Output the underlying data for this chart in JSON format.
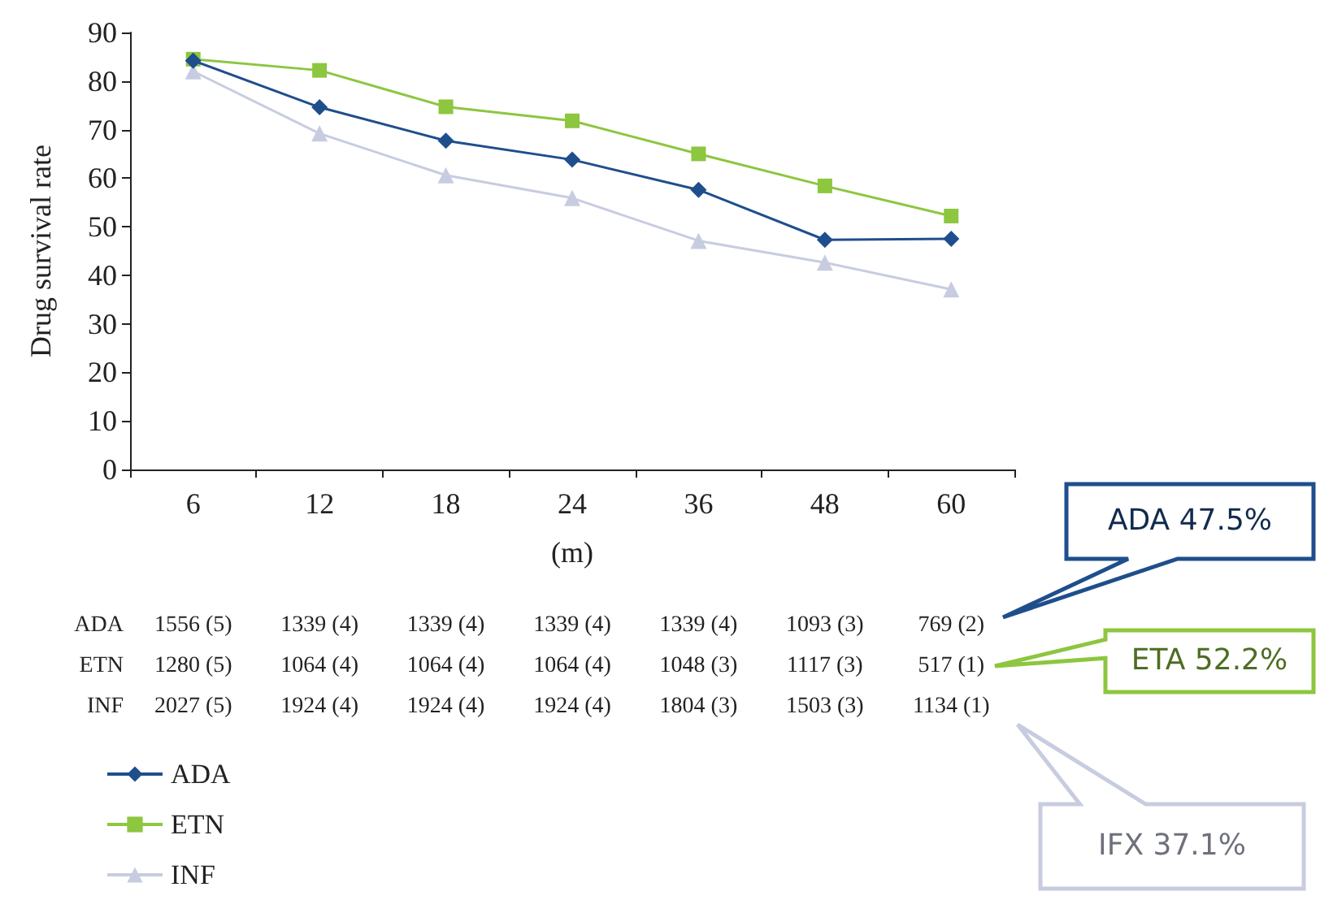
{
  "chart_data": {
    "type": "line",
    "xlabel": "(m)",
    "ylabel": "Drug survival rate",
    "categories": [
      "6",
      "12",
      "18",
      "24",
      "36",
      "48",
      "60"
    ],
    "series": [
      {
        "name": "ADA",
        "color": "#1f4e8c",
        "marker": "diamond",
        "values": [
          84.2,
          74.6,
          67.7,
          63.8,
          57.6,
          47.3,
          47.5
        ]
      },
      {
        "name": "ETN",
        "color": "#8dc63f",
        "marker": "square",
        "values": [
          84.5,
          82.2,
          74.7,
          71.8,
          65.0,
          58.4,
          52.2
        ]
      },
      {
        "name": "INF",
        "color": "#c8cce0",
        "marker": "triangle",
        "values": [
          82.0,
          69.2,
          60.6,
          55.9,
          47.1,
          42.6,
          37.1
        ]
      }
    ],
    "ylim": [
      0,
      90
    ],
    "yticks": [
      0,
      10,
      20,
      30,
      40,
      50,
      60,
      70,
      80,
      90
    ],
    "legend": "bottom left",
    "line_style": "solid",
    "annotations": [
      "ADA",
      "1556 (5)",
      "1339 (4)",
      "1339 (4)",
      "1339 (4)",
      "1339 (4)",
      "1093 (3)",
      "769 (2)",
      "ETN",
      "1280 (5)",
      "1064 (4)",
      "1064 (4)",
      "1064 (4)",
      "1048 (3)",
      "1117 (3)",
      "517 (1)",
      "INF",
      "2027 (5)",
      "1924 (4)",
      "1924 (4)",
      "1924 (4)",
      "1804 (3)",
      "1503 (3)",
      "1134 (1)",
      "ADA 47.5%",
      "ETA 52.2%",
      "IFX 37.1%"
    ]
  }
}
